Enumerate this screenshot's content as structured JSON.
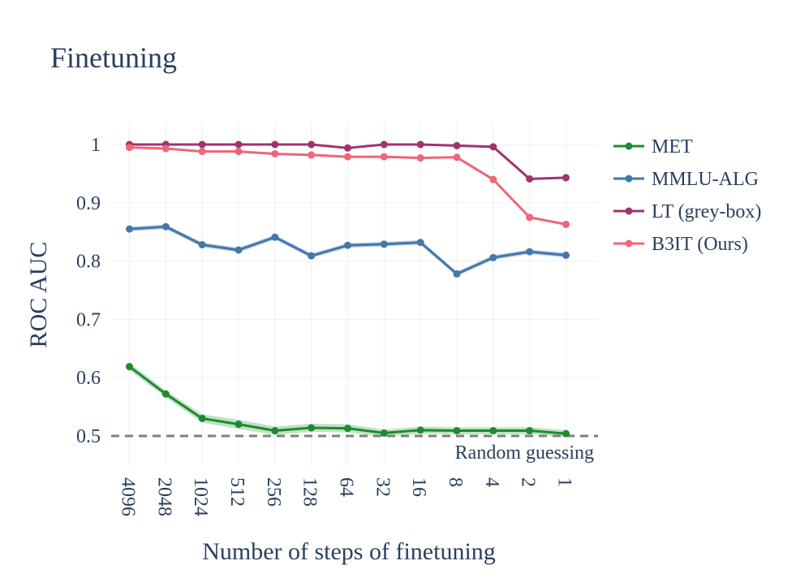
{
  "chart_data": {
    "type": "line",
    "title": "Finetuning",
    "xlabel": "Number of steps of finetuning",
    "ylabel": "ROC AUC",
    "categories": [
      "4096",
      "2048",
      "1024",
      "512",
      "256",
      "128",
      "64",
      "32",
      "16",
      "8",
      "4",
      "2",
      "1"
    ],
    "ylim": [
      0.45,
      1.04
    ],
    "yticks": [
      0.5,
      0.6,
      0.7,
      0.8,
      0.9,
      1
    ],
    "ytick_labels": [
      "0.5",
      "0.6",
      "0.7",
      "0.8",
      "0.9",
      "1"
    ],
    "grid": true,
    "legend_position": "right",
    "series": [
      {
        "name": "MET",
        "color": "#1e8a2e",
        "band_color": "#a9d8b0",
        "values": [
          0.619,
          0.572,
          0.53,
          0.52,
          0.509,
          0.514,
          0.513,
          0.505,
          0.51,
          0.509,
          0.509,
          0.509,
          0.504
        ],
        "band": [
          0.006,
          0.006,
          0.007,
          0.008,
          0.007,
          0.007,
          0.007,
          0.006,
          0.006,
          0.006,
          0.006,
          0.006,
          0.006
        ]
      },
      {
        "name": "MMLU-ALG",
        "color": "#4477aa",
        "band_color": "#a9c3e0",
        "values": [
          0.855,
          0.859,
          0.828,
          0.819,
          0.841,
          0.809,
          0.827,
          0.829,
          0.832,
          0.778,
          0.806,
          0.816,
          0.81
        ],
        "band": [
          0.004,
          0.004,
          0.004,
          0.004,
          0.004,
          0.004,
          0.004,
          0.004,
          0.004,
          0.004,
          0.004,
          0.004,
          0.004
        ]
      },
      {
        "name": "LT (grey-box)",
        "color": "#a0326e",
        "values": [
          1.0,
          1.0,
          1.0,
          1.0,
          1.0,
          1.0,
          0.994,
          1.0,
          1.0,
          0.998,
          0.996,
          0.941,
          0.943
        ]
      },
      {
        "name": "B3IT (Ours)",
        "color": "#ee6677",
        "values": [
          0.995,
          0.993,
          0.988,
          0.988,
          0.984,
          0.982,
          0.979,
          0.979,
          0.977,
          0.978,
          0.94,
          0.875,
          0.863
        ]
      }
    ],
    "reference_line": {
      "y": 0.5,
      "label": "Random guessing",
      "color": "#7f7f7f"
    }
  }
}
